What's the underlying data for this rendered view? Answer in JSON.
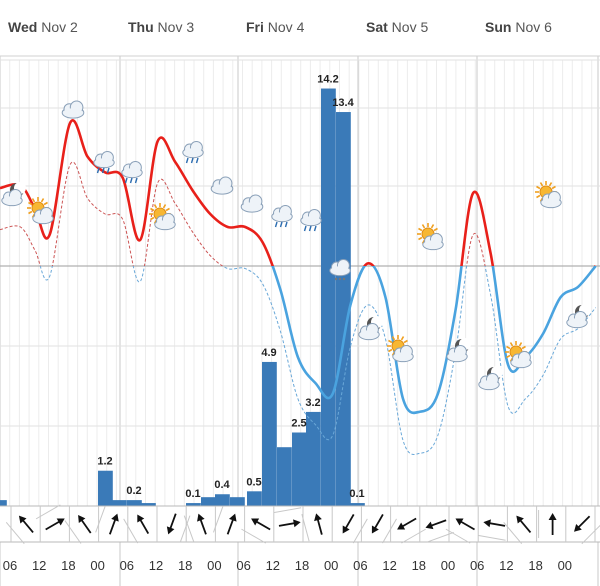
{
  "chart_data": {
    "type": "bar",
    "days": [
      {
        "name": "Wed",
        "date": "Nov 2"
      },
      {
        "name": "Thu",
        "date": "Nov 3"
      },
      {
        "name": "Fri",
        "date": "Nov 4"
      },
      {
        "name": "Sat",
        "date": "Nov 5"
      },
      {
        "name": "Sun",
        "date": "Nov 6"
      }
    ],
    "hour_ticks": [
      "06",
      "12",
      "18",
      "00",
      "06",
      "12",
      "18",
      "00",
      "06",
      "12",
      "18",
      "00",
      "06",
      "12",
      "18",
      "00",
      "06",
      "12",
      "18",
      "00"
    ],
    "precipitation": {
      "values": [
        0.2,
        0,
        0,
        0,
        0,
        0,
        1.2,
        0.2,
        0.2,
        0.1,
        0,
        0.1,
        0.3,
        0.4,
        0.3,
        0.5,
        4.9,
        2.0,
        2.5,
        3.2,
        14.2,
        13.4,
        0.1
      ],
      "labels": [
        "",
        "",
        "",
        "",
        "",
        "",
        "1.2",
        "",
        "0.2",
        "",
        "",
        "0.1",
        "",
        "0.4",
        "",
        "0.5",
        "4.9",
        "",
        "2.5",
        "3.2",
        "14.2",
        "13.4",
        "0.1"
      ]
    },
    "temperature": {
      "x": [
        0,
        0.7,
        1.2,
        1.7,
        2.4,
        3.0,
        3.6,
        4.2,
        4.8,
        5.4,
        6.0,
        6.6,
        7.2,
        7.8,
        8.4,
        9.0,
        9.6,
        10.2,
        10.8,
        11.4,
        12.0,
        12.6,
        13.2,
        13.8,
        14.4,
        15.0,
        15.6,
        16.2,
        16.8,
        17.4,
        18.0,
        18.6,
        19.2,
        19.8,
        20.4
      ],
      "y": [
        3.0,
        3.1,
        2.2,
        1.2,
        5.5,
        4.2,
        3.6,
        3.4,
        1.0,
        4.8,
        4.0,
        2.9,
        2.0,
        1.5,
        1.5,
        0.9,
        -0.9,
        -3.5,
        -4.5,
        -4.9,
        -1.5,
        0.1,
        -1.2,
        -5.1,
        -5.6,
        -4.9,
        -1.7,
        2.8,
        0.5,
        -3.8,
        -3.5,
        -2.6,
        -1.2,
        -0.8,
        0.0
      ],
      "warm_color": "#e8201a",
      "cold_color": "#4aa3df"
    },
    "wind_direction_deg": [
      140,
      240,
      145,
      200,
      150,
      20,
      160,
      200,
      120,
      260,
      165,
      30,
      30,
      60,
      70,
      120,
      100,
      140,
      180,
      45
    ]
  }
}
